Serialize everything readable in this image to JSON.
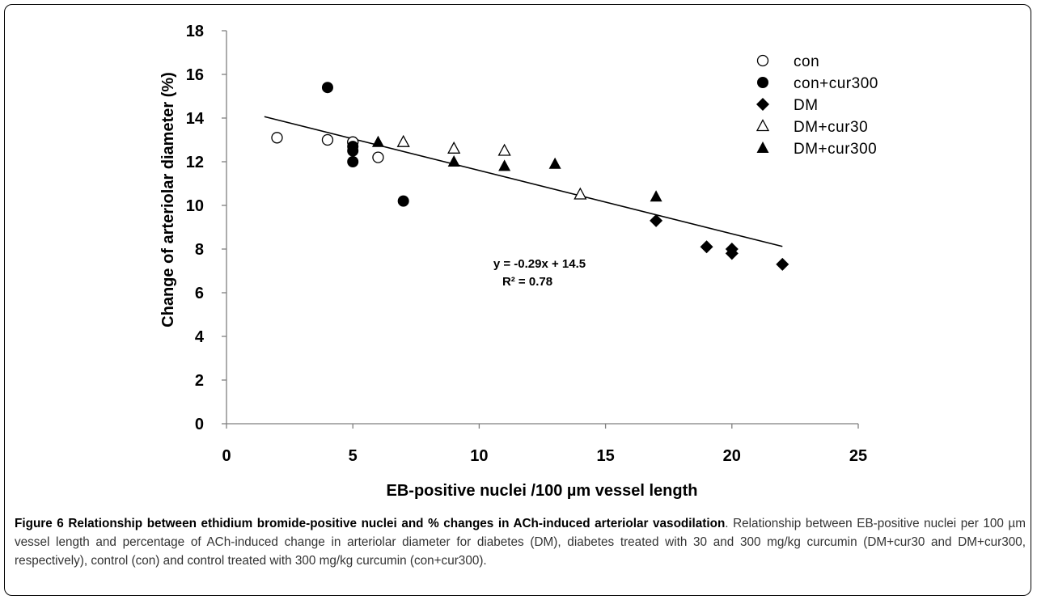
{
  "chart_data": {
    "type": "scatter",
    "xlabel": "EB-positive nuclei /100 µm vessel length",
    "ylabel": "Change of arteriolar diameter (%)",
    "xlim": [
      0,
      25
    ],
    "ylim": [
      0,
      18
    ],
    "x_ticks": [
      "0",
      "5",
      "10",
      "15",
      "20",
      "25"
    ],
    "y_ticks": [
      "0",
      "2",
      "4",
      "6",
      "8",
      "10",
      "12",
      "14",
      "16",
      "18"
    ],
    "grid": false,
    "legend_position": "top-right",
    "series": [
      {
        "name": "con",
        "marker": "open-circle",
        "points": [
          [
            2,
            13.1
          ],
          [
            4,
            13.0
          ],
          [
            5,
            12.9
          ],
          [
            6,
            12.2
          ]
        ]
      },
      {
        "name": "con+cur300",
        "marker": "filled-circle",
        "points": [
          [
            4,
            15.4
          ],
          [
            5,
            12.7
          ],
          [
            5,
            12.5
          ],
          [
            5,
            12.0
          ],
          [
            7,
            10.2
          ]
        ]
      },
      {
        "name": "DM",
        "marker": "filled-diamond",
        "points": [
          [
            17,
            9.3
          ],
          [
            19,
            8.1
          ],
          [
            20,
            8.0
          ],
          [
            20,
            7.8
          ],
          [
            22,
            7.3
          ]
        ]
      },
      {
        "name": "DM+cur30",
        "marker": "open-triangle",
        "points": [
          [
            7,
            12.9
          ],
          [
            9,
            12.6
          ],
          [
            11,
            12.5
          ],
          [
            14,
            10.5
          ]
        ]
      },
      {
        "name": "DM+cur300",
        "marker": "filled-triangle",
        "points": [
          [
            6,
            12.9
          ],
          [
            9,
            12.0
          ],
          [
            11,
            11.8
          ],
          [
            13,
            11.9
          ],
          [
            17,
            10.4
          ]
        ]
      }
    ],
    "trendline": {
      "slope": -0.29,
      "intercept": 14.5,
      "x_range": [
        1.5,
        22
      ]
    },
    "annotations": [
      "y = -0.29x + 14.5",
      "R² = 0.78"
    ]
  },
  "caption": {
    "title": "Figure 6 Relationship between ethidium bromide-positive nuclei and % changes in ACh-induced arteriolar vasodilation",
    "body": ". Relationship between EB-positive nuclei per 100 µm vessel length and percentage of ACh-induced change in arteriolar diameter for diabetes (DM), diabetes treated with 30 and 300 mg/kg curcumin (DM+cur30 and DM+cur300, respectively), control (con) and control treated with 300 mg/kg curcumin (con+cur300)."
  }
}
